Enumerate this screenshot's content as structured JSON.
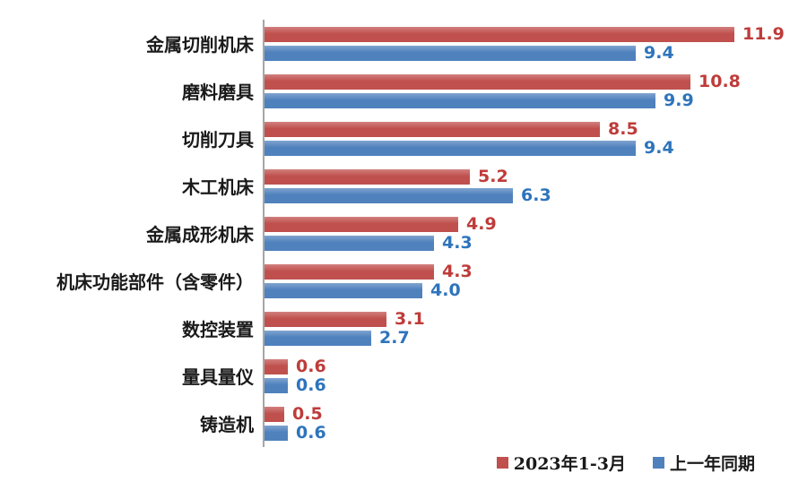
{
  "chart_data": {
    "type": "bar",
    "orientation": "horizontal",
    "title": "",
    "xlabel": "",
    "ylabel": "",
    "grid": false,
    "xlim": [
      0,
      13.5
    ],
    "value_label_decimals": 1,
    "legend_position": "bottom-right",
    "axis_line_color": "#A6A6A6",
    "label_color": "#1A1A1A",
    "background": "#FFFFFF",
    "categories": [
      "金属切削机床",
      "磨料磨具",
      "切削刀具",
      "木工机床",
      "金属成形机床",
      "机床功能部件（含零件）",
      "数控装置",
      "量具量仪",
      "铸造机"
    ],
    "series": [
      {
        "name": "2023年1-3月",
        "color": "#C0504D",
        "value_color": "#BE3C3A",
        "values": [
          11.9,
          10.8,
          8.5,
          5.2,
          4.9,
          4.3,
          3.1,
          0.6,
          0.5
        ]
      },
      {
        "name": "上一年同期",
        "color": "#4F81BD",
        "value_color": "#2E74BC",
        "values": [
          9.4,
          9.9,
          9.4,
          6.3,
          4.3,
          4.0,
          2.7,
          0.6,
          0.6
        ]
      }
    ]
  }
}
